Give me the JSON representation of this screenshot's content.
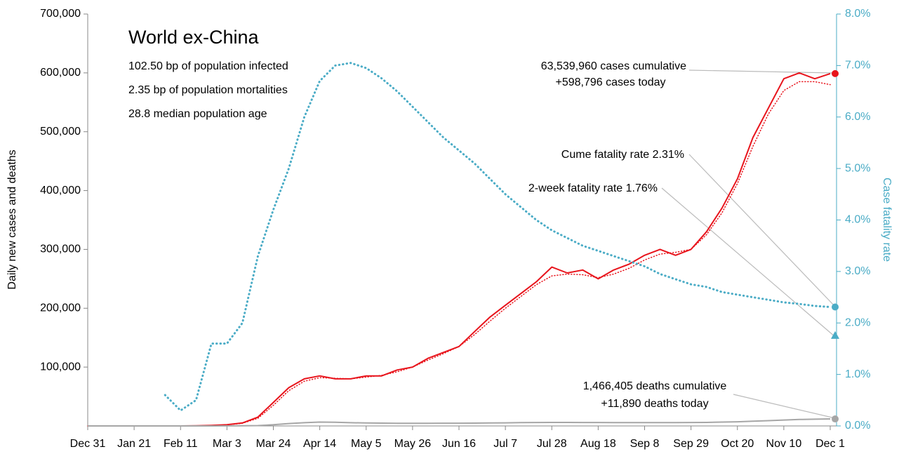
{
  "chart_data": {
    "type": "line",
    "title": "World ex-China",
    "subtitle_lines": [
      "102.50 bp of population infected",
      "2.35 bp of population mortalities",
      "28.8 median population age"
    ],
    "ylabel": "Daily new cases and deaths",
    "y2label": "Case fatality rate",
    "categories": [
      "Dec 31",
      null,
      null,
      "Jan 21",
      null,
      null,
      "Feb 11",
      null,
      null,
      "Mar 3",
      null,
      null,
      "Mar 24",
      null,
      null,
      "Apr 14",
      null,
      null,
      "May 5",
      null,
      null,
      "May 26",
      null,
      null,
      "Jun 16",
      null,
      null,
      "Jul 7",
      null,
      null,
      "Jul 28",
      null,
      null,
      "Aug 18",
      null,
      null,
      "Sep 8",
      null,
      null,
      "Sep 29",
      null,
      null,
      "Oct 20",
      null,
      null,
      "Nov 10",
      null,
      null,
      "Dec 1"
    ],
    "ylim": [
      0,
      700000
    ],
    "yticks": [
      {
        "value": 100000,
        "label": "100,000"
      },
      {
        "value": 200000,
        "label": "200,000"
      },
      {
        "value": 300000,
        "label": "300,000"
      },
      {
        "value": 400000,
        "label": "400,000"
      },
      {
        "value": 500000,
        "label": "500,000"
      },
      {
        "value": 600000,
        "label": "600,000"
      },
      {
        "value": 700000,
        "label": "700,000"
      }
    ],
    "y2lim": [
      0,
      8
    ],
    "y2ticks": [
      {
        "value": 0,
        "label": "0.0%"
      },
      {
        "value": 1,
        "label": "1.0%"
      },
      {
        "value": 2,
        "label": "2.0%"
      },
      {
        "value": 3,
        "label": "3.0%"
      },
      {
        "value": 4,
        "label": "4.0%"
      },
      {
        "value": 5,
        "label": "5.0%"
      },
      {
        "value": 6,
        "label": "6.0%"
      },
      {
        "value": 7,
        "label": "7.0%"
      },
      {
        "value": 8,
        "label": "8.0%"
      }
    ],
    "y2color": "#4bacc6",
    "series": [
      {
        "color": "#e8141c",
        "style": "solid",
        "axis": "y",
        "values": [
          0,
          0,
          0,
          0,
          0,
          0,
          0,
          200,
          1000,
          2000,
          5000,
          15000,
          40000,
          65000,
          80000,
          85000,
          80000,
          80000,
          85000,
          85000,
          95000,
          100000,
          115000,
          125000,
          135000,
          160000,
          185000,
          205000,
          225000,
          245000,
          270000,
          260000,
          265000,
          250000,
          265000,
          275000,
          290000,
          300000,
          290000,
          300000,
          330000,
          370000,
          420000,
          490000,
          540000,
          590000,
          600000,
          590000,
          598796
        ]
      },
      {
        "color": "#e8141c",
        "style": "dotted",
        "axis": "y",
        "values": [
          0,
          0,
          0,
          0,
          0,
          0,
          0,
          100,
          800,
          1800,
          4500,
          13000,
          35000,
          60000,
          76000,
          82000,
          81000,
          80000,
          83000,
          86000,
          92000,
          100000,
          112000,
          123000,
          135000,
          155000,
          178000,
          200000,
          220000,
          240000,
          255000,
          258000,
          257000,
          252000,
          258000,
          268000,
          282000,
          292000,
          295000,
          300000,
          325000,
          362000,
          412000,
          475000,
          530000,
          570000,
          585000,
          585000,
          580000
        ]
      },
      {
        "color": "#a6a6a6",
        "style": "solid",
        "axis": "y",
        "values": [
          0,
          0,
          0,
          0,
          0,
          0,
          0,
          0,
          30,
          60,
          200,
          600,
          2000,
          4000,
          5500,
          6500,
          6200,
          5500,
          5000,
          4800,
          4500,
          4500,
          4500,
          4600,
          4700,
          4800,
          5000,
          5300,
          5600,
          5800,
          6000,
          6000,
          5900,
          5800,
          5700,
          5600,
          5600,
          5600,
          5700,
          5800,
          6000,
          6500,
          7000,
          8000,
          9000,
          10000,
          11000,
          11500,
          11890
        ]
      },
      {
        "color": "#4bacc6",
        "style": "dotted",
        "axis": "y2",
        "values": [
          null,
          null,
          null,
          null,
          null,
          0.6,
          0.3,
          0.5,
          1.6,
          1.6,
          2.0,
          3.3,
          4.2,
          5.0,
          6.0,
          6.7,
          7.0,
          7.05,
          6.95,
          6.75,
          6.5,
          6.2,
          5.9,
          5.6,
          5.35,
          5.1,
          4.8,
          4.5,
          4.25,
          4.0,
          3.8,
          3.65,
          3.5,
          3.4,
          3.3,
          3.2,
          3.1,
          2.95,
          2.85,
          2.75,
          2.7,
          2.6,
          2.55,
          2.5,
          2.45,
          2.4,
          2.37,
          2.33,
          2.31
        ]
      }
    ],
    "annotations": [
      {
        "lines": [
          "63,539,960 cases cumulative",
          "+598,796 cases today"
        ]
      },
      {
        "lines": [
          "Cume fatality rate 2.31%"
        ]
      },
      {
        "lines": [
          "2-week fatality rate 1.76%"
        ],
        "value": 1.76,
        "axis": "y2"
      },
      {
        "lines": [
          "1,466,405 deaths cumulative",
          "+11,890 deaths today"
        ]
      }
    ]
  }
}
